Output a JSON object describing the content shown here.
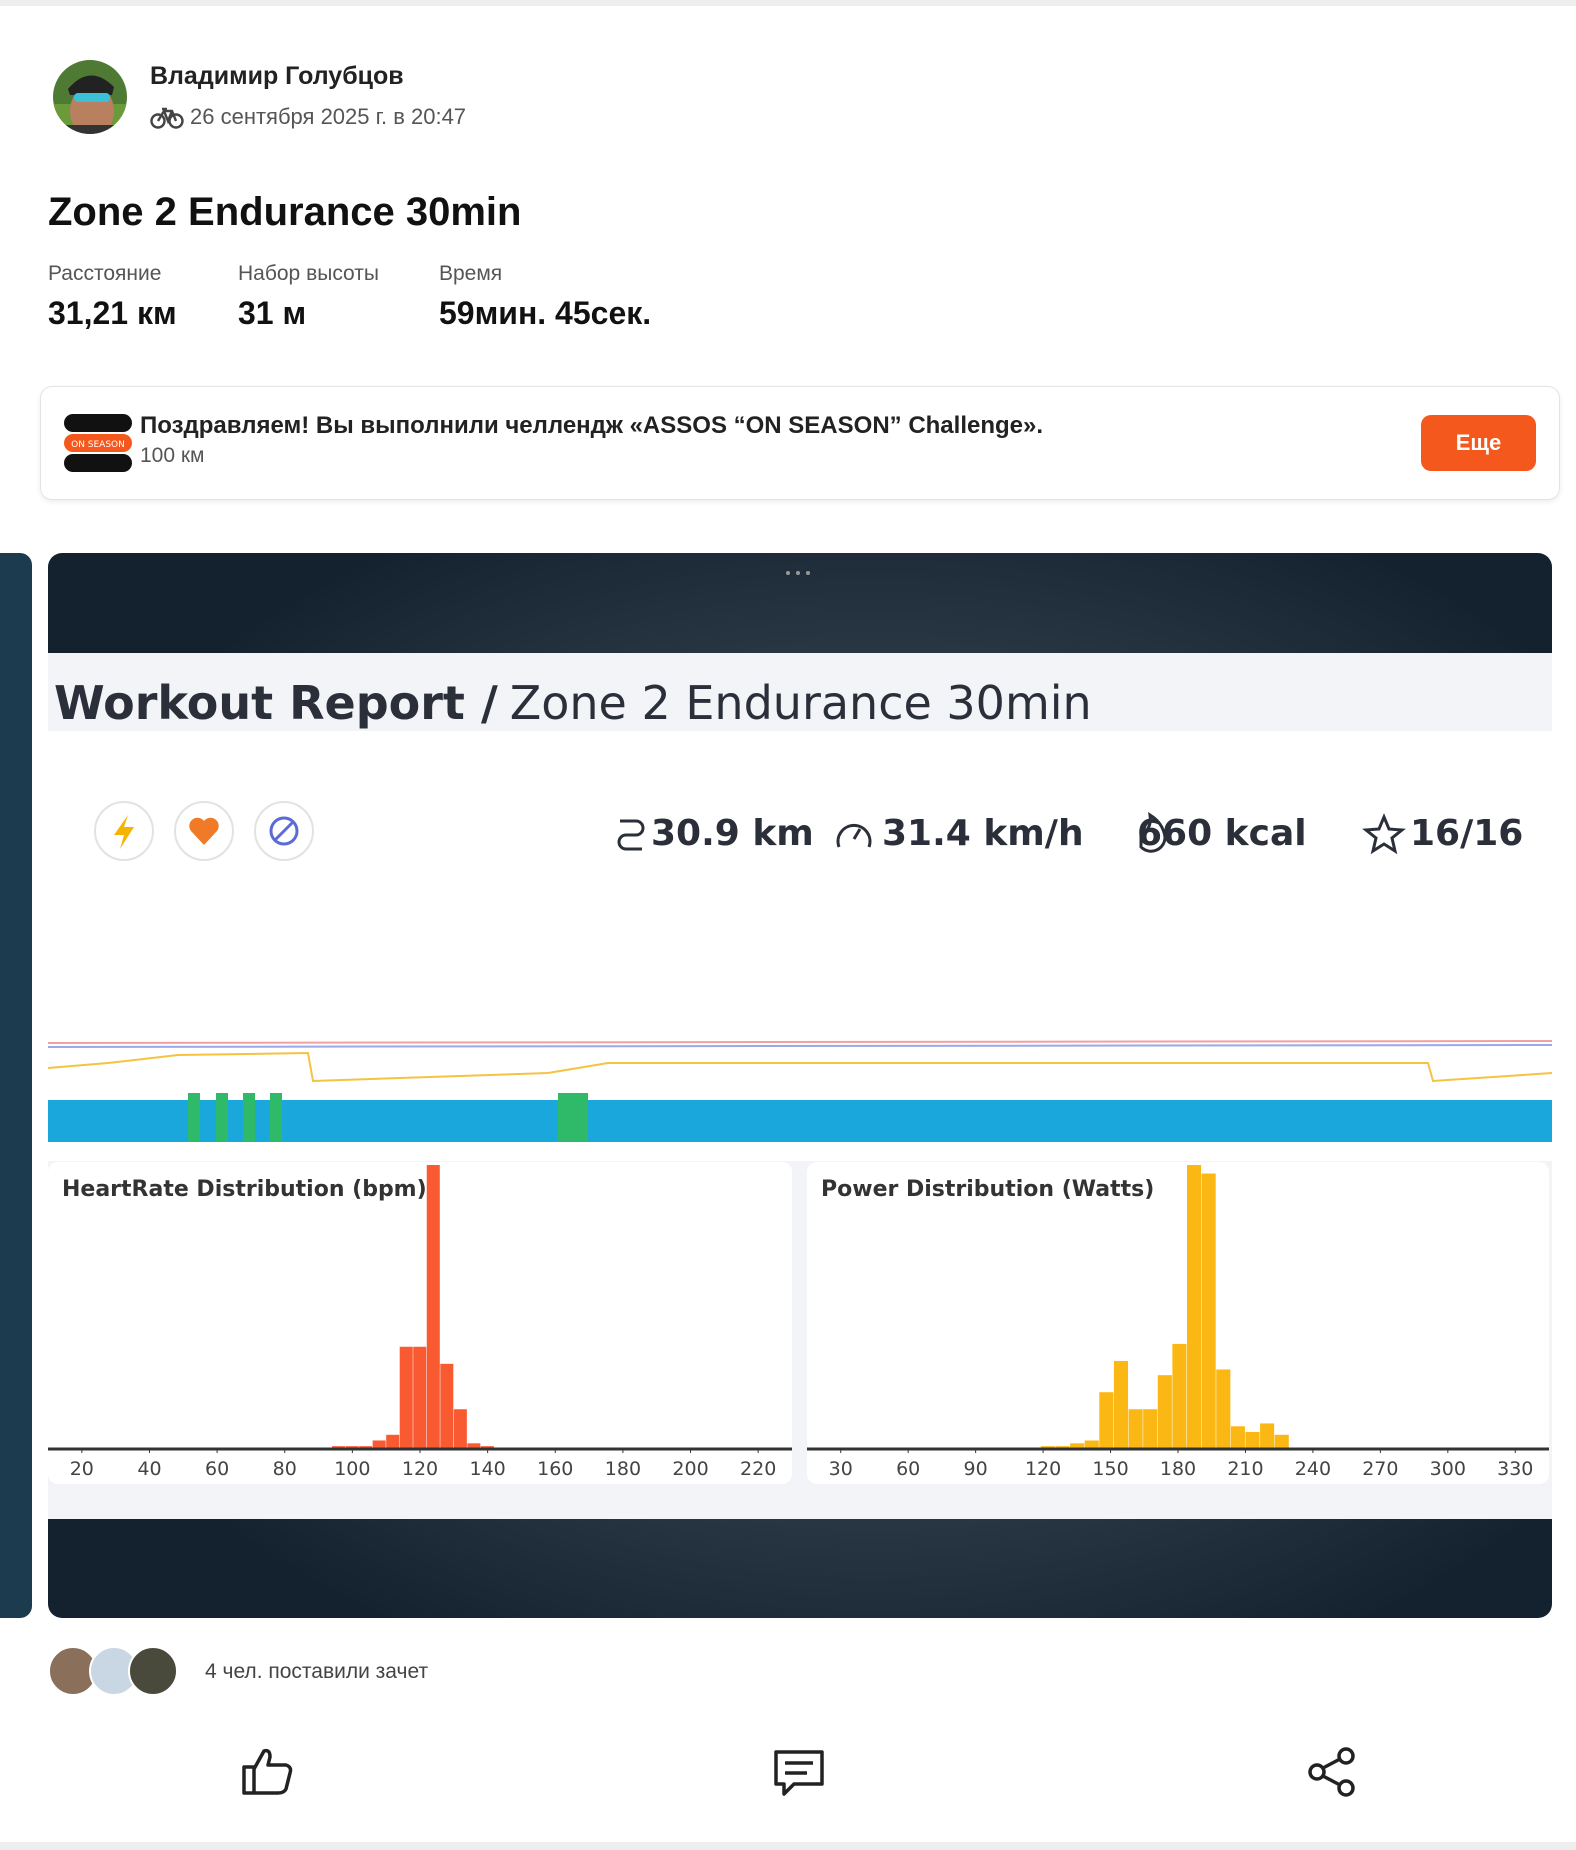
{
  "post": {
    "author": "Владимир Голубцов",
    "date": "26 сентября 2025 г. в 20:47",
    "title": "Zone 2 Endurance 30min",
    "stats": [
      {
        "label": "Расстояние",
        "value": "31,21 км"
      },
      {
        "label": "Набор высоты",
        "value": "31 м"
      },
      {
        "label": "Время",
        "value": "59мин. 45сек."
      }
    ],
    "challenge": {
      "badge": "ON SEASON",
      "text": "Поздравляем! Вы выполнили челлендж «ASSOS “ON SEASON” Challenge».",
      "distance": "100 км",
      "button": "Еще"
    },
    "workout_image": {
      "title_bold": "Workout Report /",
      "title_rest": "Zone 2 Endurance 30min",
      "stats": [
        "30.9 km",
        "31.4 km/h",
        "660 kcal",
        "16/16"
      ],
      "charts": [
        {
          "type": "histogram",
          "title": "HeartRate Distribution (bpm)",
          "color": "#fa5a32",
          "bins": [
            94,
            98,
            102,
            106,
            110,
            114,
            118,
            122,
            126,
            130,
            134,
            138,
            142
          ],
          "values": [
            1,
            1,
            1,
            3,
            5,
            36,
            36,
            100,
            30,
            14,
            2,
            1
          ],
          "xlim": [
            10,
            230
          ],
          "xticks": [
            20,
            40,
            60,
            80,
            100,
            120,
            140,
            160,
            180,
            200,
            220
          ]
        },
        {
          "type": "histogram",
          "title": "Power Distribution (Watts)",
          "color": "#fbb814",
          "bins": [
            119,
            125.5,
            132,
            138.5,
            145,
            151.5,
            158,
            164.5,
            171,
            177.5,
            184,
            190.5,
            197,
            203.5,
            210,
            216.5,
            223,
            229.5
          ],
          "values": [
            1,
            1,
            2,
            3,
            20,
            31,
            14,
            14,
            26,
            37,
            100,
            97,
            28,
            8,
            6,
            9,
            5
          ],
          "xlim": [
            15,
            345
          ],
          "xticks": [
            30,
            60,
            90,
            120,
            150,
            180,
            210,
            240,
            270,
            300,
            330
          ]
        }
      ]
    },
    "kudos": "4 чел. поставили зачет"
  }
}
